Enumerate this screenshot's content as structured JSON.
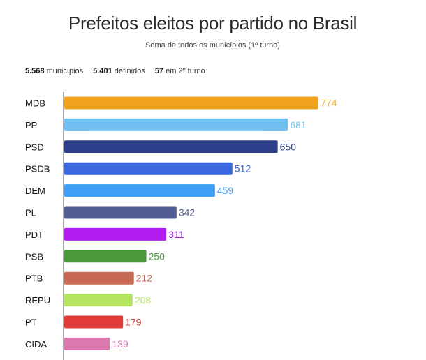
{
  "header": {
    "title": "Prefeitos eleitos por partido no Brasil",
    "subtitle": "Soma de todos os municípios (1º turno)"
  },
  "stats": [
    {
      "value": "5.568",
      "label": "municípios"
    },
    {
      "value": "5.401",
      "label": "definidos"
    },
    {
      "value": "57",
      "label": "em 2º turno"
    }
  ],
  "chart_data": {
    "type": "bar",
    "orientation": "horizontal",
    "title": "Prefeitos eleitos por partido no Brasil",
    "subtitle": "Soma de todos os municípios (1º turno)",
    "categories": [
      "MDB",
      "PP",
      "PSD",
      "PSDB",
      "DEM",
      "PL",
      "PDT",
      "PSB",
      "PTB",
      "REPU",
      "PT",
      "CIDA"
    ],
    "values": [
      774,
      681,
      650,
      512,
      459,
      342,
      311,
      250,
      212,
      208,
      179,
      139
    ],
    "colors": [
      "#eea21e",
      "#72c0f3",
      "#2d3f8a",
      "#3b67e0",
      "#3e9ef5",
      "#525e92",
      "#b21cf0",
      "#4a9a3b",
      "#c76953",
      "#b5e463",
      "#e33a38",
      "#db78ae"
    ],
    "xlim": [
      0,
      774
    ],
    "grid": false,
    "legend": "none"
  }
}
